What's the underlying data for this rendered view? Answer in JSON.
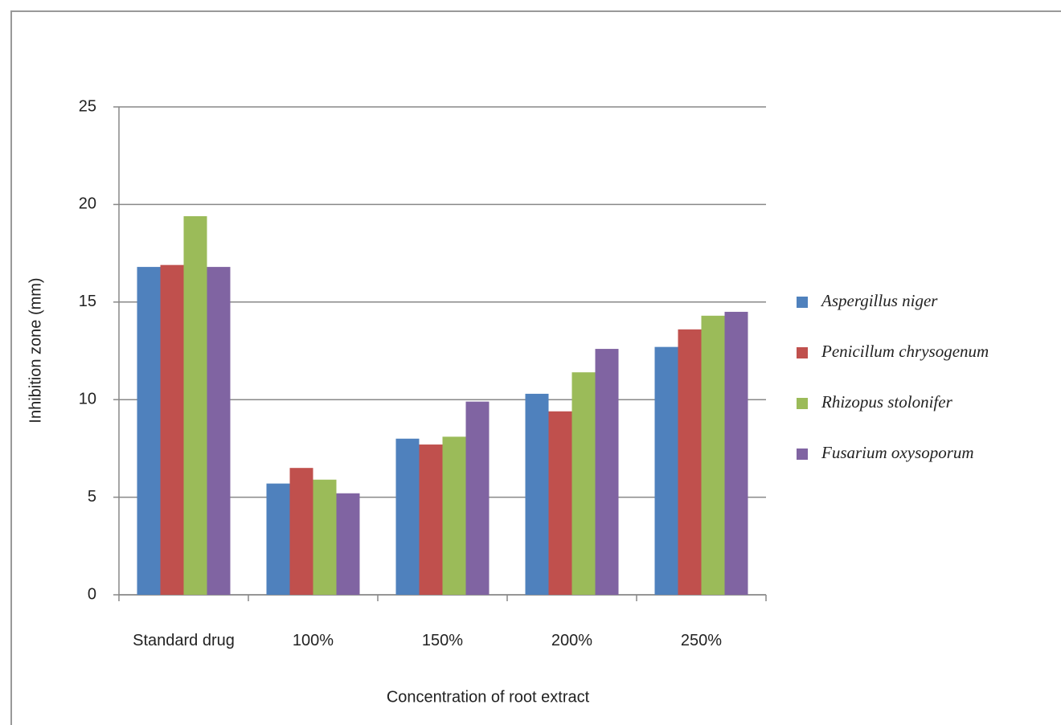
{
  "chart_data": {
    "type": "bar",
    "x_label": "Concentration of root extract",
    "y_label": "Inhibition zone (mm)",
    "categories": [
      "Standard drug",
      "100%",
      "150%",
      "200%",
      "250%"
    ],
    "series": [
      {
        "name": "Aspergillus niger",
        "color": "#4f81bd",
        "values": [
          16.8,
          5.7,
          8.0,
          10.3,
          12.7
        ]
      },
      {
        "name": "Penicillum chrysogenum",
        "color": "#c0504d",
        "values": [
          16.9,
          6.5,
          7.7,
          9.4,
          13.6
        ]
      },
      {
        "name": "Rhizopus stolonifer",
        "color": "#9bbb59",
        "values": [
          19.4,
          5.9,
          8.1,
          11.4,
          14.3
        ]
      },
      {
        "name": "Fusarium oxysoporum",
        "color": "#8064a2",
        "values": [
          16.8,
          5.2,
          9.9,
          12.6,
          14.5
        ]
      }
    ],
    "ylim": [
      0,
      25
    ],
    "yticks": [
      0,
      5,
      10,
      15,
      20,
      25
    ],
    "grid": true,
    "legend": "right"
  }
}
